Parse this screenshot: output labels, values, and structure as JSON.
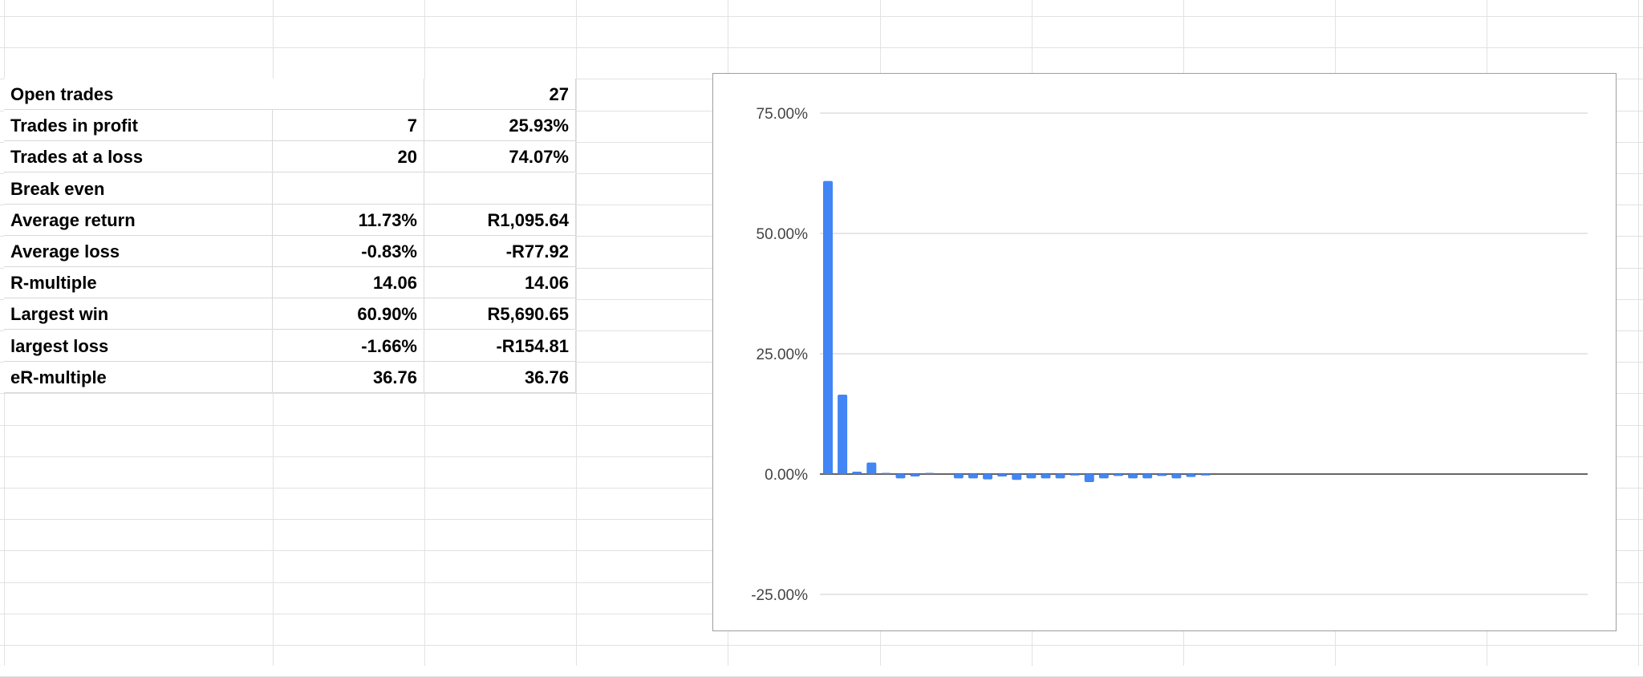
{
  "stats_table": {
    "rows": [
      {
        "label": "Open  trades",
        "value1": "",
        "value2": "27",
        "merged": true
      },
      {
        "label": "Trades in profit",
        "value1": "7",
        "value2": "25.93%"
      },
      {
        "label": "Trades at a loss",
        "value1": "20",
        "value2": "74.07%"
      },
      {
        "label": "Break even",
        "value1": "",
        "value2": ""
      },
      {
        "label": "Average return",
        "value1": "11.73%",
        "value2": "R1,095.64"
      },
      {
        "label": "Average loss",
        "value1": "-0.83%",
        "value2": "-R77.92"
      },
      {
        "label": "R-multiple",
        "value1": "14.06",
        "value2": "14.06"
      },
      {
        "label": "Largest win",
        "value1": "60.90%",
        "value2": "R5,690.65"
      },
      {
        "label": "largest loss",
        "value1": "-1.66%",
        "value2": "-R154.81"
      },
      {
        "label": "eR-multiple",
        "value1": "36.76",
        "value2": "36.76"
      }
    ]
  },
  "chart_data": {
    "type": "bar",
    "title": "",
    "xlabel": "",
    "ylabel": "",
    "ylim": [
      -25,
      75
    ],
    "yticks": [
      -25,
      0,
      25,
      50,
      75
    ],
    "ytick_labels": [
      "-25.00%",
      "0.00%",
      "25.00%",
      "50.00%",
      "75.00%"
    ],
    "grid": true,
    "legend": "none",
    "bar_color": "#4285f4",
    "values": [
      60.9,
      16.5,
      0.5,
      2.4,
      0.1,
      -0.9,
      -0.5,
      0.1,
      0,
      -0.9,
      -0.9,
      -1.1,
      -0.5,
      -1.2,
      -0.9,
      -0.9,
      -0.9,
      -0.3,
      -1.66,
      -0.9,
      -0.4,
      -0.9,
      -0.9,
      -0.4,
      -0.9,
      -0.6,
      -0.3
    ]
  }
}
